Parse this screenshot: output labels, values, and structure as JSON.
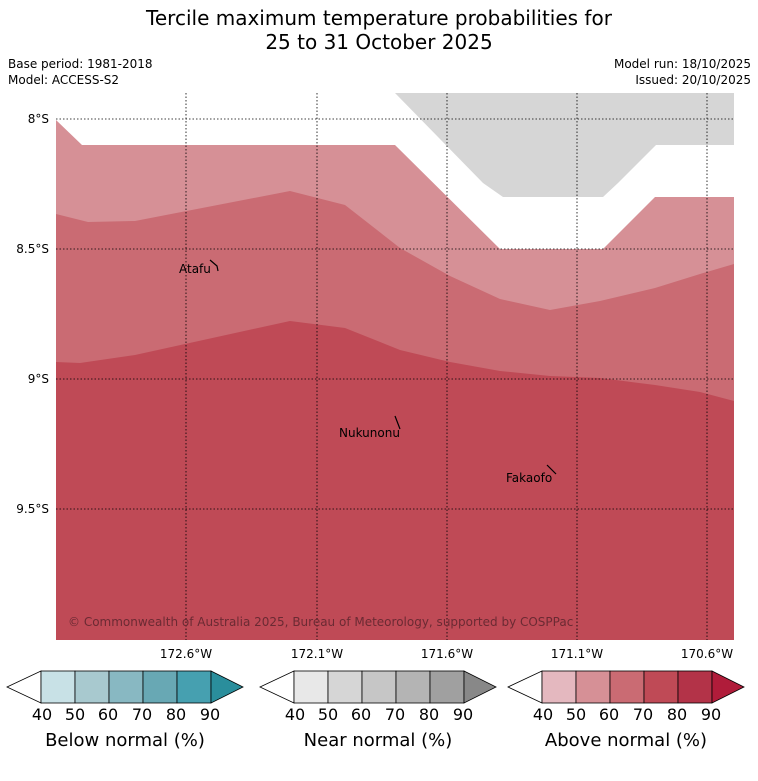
{
  "title_line1": "Tercile maximum temperature probabilities for",
  "title_line2": "25 to 31 October 2025",
  "meta_left": {
    "base_period": "Base period: 1981-2018",
    "model": "Model: ACCESS-S2"
  },
  "meta_right": {
    "model_run": "Model run: 18/10/2025",
    "issued": "Issued: 20/10/2025"
  },
  "lat_labels": [
    "8°S",
    "8.5°S",
    "9°S",
    "9.5°S"
  ],
  "lon_labels": [
    "172.6°W",
    "172.1°W",
    "171.6°W",
    "171.1°W",
    "170.6°W"
  ],
  "places": [
    {
      "name": "Atafu"
    },
    {
      "name": "Nukunonu"
    },
    {
      "name": "Fakaofo"
    }
  ],
  "copyright": "© Commonwealth of Australia 2025, Bureau of Meteorology, supported by COSPPac",
  "colorbars": [
    {
      "label": "Below normal (%)",
      "ticks": [
        "40",
        "50",
        "60",
        "70",
        "80",
        "90"
      ],
      "colors": [
        "#ffffff",
        "#c8e1e6",
        "#a8c9cf",
        "#88b8c2",
        "#68a8b4",
        "#46a0b0",
        "#2a8e9c"
      ]
    },
    {
      "label": "Near normal (%)",
      "ticks": [
        "40",
        "50",
        "60",
        "70",
        "80",
        "90"
      ],
      "colors": [
        "#ffffff",
        "#e8e8e8",
        "#d6d6d6",
        "#c6c6c6",
        "#b4b4b4",
        "#a0a0a0",
        "#888888"
      ]
    },
    {
      "label": "Above normal (%)",
      "ticks": [
        "40",
        "50",
        "60",
        "70",
        "80",
        "90"
      ],
      "colors": [
        "#ffffff",
        "#e4b8bf",
        "#d69096",
        "#ca6b73",
        "#bf4a56",
        "#b33348",
        "#b01c3a"
      ]
    }
  ],
  "colors": {
    "near_50": "#d6d6d6",
    "above_50": "#d69096",
    "above_60": "#ca6b73",
    "above_70": "#bf4a56"
  }
}
